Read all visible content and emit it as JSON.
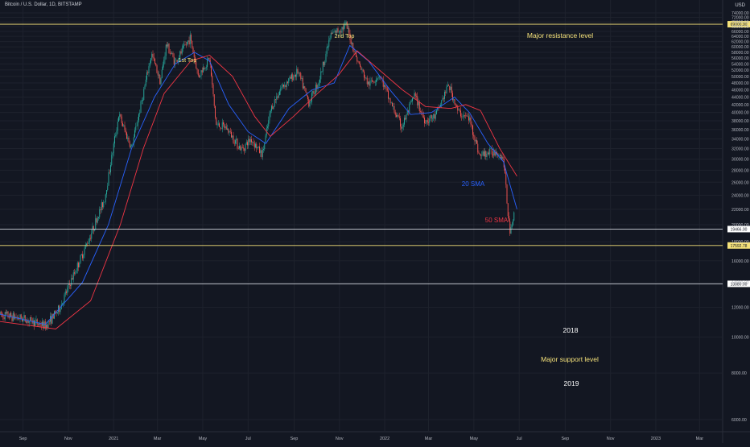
{
  "header": {
    "title": "Bitcoin / U.S. Dollar, 1D, BITSTAMP",
    "currency": "USD"
  },
  "colors": {
    "background": "#131722",
    "grid": "#1e222d",
    "up": "#26a69a",
    "down": "#ef5350",
    "sma20": "#2962ff",
    "sma50": "#f23645",
    "level_line": "#f5e27a",
    "level_line_white": "#d1d4dc",
    "axis_text": "#b2b5be",
    "annotation_yellow": "#f5e27a",
    "annotation_white": "#ffffff"
  },
  "chart_data": {
    "type": "line",
    "title": "Bitcoin / U.S. Dollar, 1D, BITSTAMP",
    "xlabel": "",
    "ylabel": "USD",
    "ylim": [
      6000,
      74000
    ],
    "x_ticks": [
      "Sep",
      "Nov",
      "2021",
      "Mar",
      "May",
      "Jul",
      "Sep",
      "Nov",
      "2022",
      "Mar",
      "May",
      "Jul",
      "Sep",
      "Nov",
      "2023",
      "Mar"
    ],
    "y_ticks": [
      6000,
      8000,
      10000,
      12000,
      14000,
      16000,
      18000,
      20000,
      22000,
      24000,
      26000,
      28000,
      30000,
      32000,
      34000,
      36000,
      38000,
      40000,
      42000,
      44000,
      46000,
      48000,
      50000,
      52000,
      54000,
      56000,
      58000,
      60000,
      62000,
      64000,
      66000,
      68000,
      70000,
      72000,
      74000
    ],
    "y_tick_labels": [
      "6000.00",
      "8000.00",
      "10000.00",
      "12000.00",
      "14000.00",
      "16000.00",
      "18000.00",
      "20000.00",
      "22000.00",
      "24000.00",
      "26000.00",
      "28000.00",
      "30000.00",
      "32000.00",
      "34000.00",
      "36000.00",
      "38000.00",
      "40000.00",
      "42000.00",
      "44000.00",
      "46000.00",
      "48000.00",
      "50000.00",
      "52000.00",
      "54000.00",
      "56000.00",
      "58000.00",
      "60000.00",
      "62000.00",
      "64000.00",
      "66000.00",
      "68000.00",
      "70000.00",
      "72000.00",
      "74000.00"
    ],
    "series": [
      {
        "name": "Price",
        "x": [
          "2020-08-01",
          "2020-09-01",
          "2020-10-01",
          "2020-10-20",
          "2020-11-15",
          "2020-12-01",
          "2020-12-20",
          "2021-01-08",
          "2021-01-25",
          "2021-02-10",
          "2021-02-21",
          "2021-03-05",
          "2021-03-13",
          "2021-03-25",
          "2021-04-14",
          "2021-04-25",
          "2021-05-10",
          "2021-05-19",
          "2021-06-01",
          "2021-06-22",
          "2021-07-05",
          "2021-07-20",
          "2021-08-01",
          "2021-08-14",
          "2021-09-06",
          "2021-09-21",
          "2021-10-05",
          "2021-10-20",
          "2021-11-10",
          "2021-11-26",
          "2021-12-10",
          "2021-12-25",
          "2022-01-10",
          "2022-01-24",
          "2022-02-10",
          "2022-02-24",
          "2022-03-10",
          "2022-03-28",
          "2022-04-10",
          "2022-04-25",
          "2022-05-09",
          "2022-05-15",
          "2022-06-01",
          "2022-06-10",
          "2022-06-18",
          "2022-06-25"
        ],
        "values": [
          11500,
          11200,
          10700,
          11900,
          15800,
          18800,
          23500,
          39500,
          32000,
          45000,
          57500,
          48500,
          61000,
          54500,
          63500,
          50000,
          56000,
          37000,
          36500,
          31800,
          34000,
          30800,
          41000,
          46500,
          51500,
          42500,
          49000,
          64500,
          68500,
          54500,
          47500,
          50500,
          42000,
          36500,
          44500,
          38000,
          39000,
          47500,
          40000,
          38500,
          30500,
          31000,
          31500,
          30000,
          19200,
          21500
        ]
      },
      {
        "name": "20 SMA",
        "x": [
          "2020-08-01",
          "2020-10-01",
          "2020-11-20",
          "2020-12-25",
          "2021-01-25",
          "2021-02-25",
          "2021-03-25",
          "2021-04-20",
          "2021-05-10",
          "2021-06-05",
          "2021-07-01",
          "2021-07-25",
          "2021-08-25",
          "2021-09-25",
          "2021-10-25",
          "2021-11-15",
          "2021-12-10",
          "2022-01-10",
          "2022-02-05",
          "2022-03-05",
          "2022-04-05",
          "2022-04-25",
          "2022-05-20",
          "2022-06-10",
          "2022-06-28"
        ],
        "values": [
          11500,
          10800,
          14000,
          20000,
          32000,
          44000,
          54000,
          58000,
          55000,
          42000,
          35500,
          33000,
          41000,
          46000,
          48000,
          60500,
          55000,
          45500,
          39500,
          40000,
          44000,
          40000,
          33000,
          29500,
          22000
        ]
      },
      {
        "name": "50 SMA",
        "x": [
          "2020-08-01",
          "2020-10-15",
          "2020-12-01",
          "2021-01-10",
          "2021-02-10",
          "2021-03-10",
          "2021-04-15",
          "2021-05-10",
          "2021-06-10",
          "2021-07-10",
          "2021-07-31",
          "2021-08-31",
          "2021-09-30",
          "2021-10-31",
          "2021-11-25",
          "2021-12-20",
          "2022-01-25",
          "2022-02-25",
          "2022-03-31",
          "2022-04-20",
          "2022-05-10",
          "2022-06-05",
          "2022-06-28"
        ],
        "values": [
          11000,
          10500,
          12500,
          20000,
          32000,
          45000,
          55000,
          57000,
          50000,
          39000,
          34500,
          39000,
          44500,
          50500,
          58500,
          53000,
          46000,
          41500,
          41000,
          42000,
          40500,
          32000,
          27000
        ]
      }
    ],
    "horizontal_levels": [
      69000.0,
      19466.0,
      17592.78,
      13880.0
    ],
    "horizontal_level_labels": [
      "69000.00",
      "19466.00",
      "17592.78",
      "13880.00"
    ],
    "annotations": [
      {
        "text": "1st Top"
      },
      {
        "text": "2nd Top"
      },
      {
        "text": "Major resistance level"
      },
      {
        "text": "20 SMA"
      },
      {
        "text": "50 SMA"
      },
      {
        "text": "2018"
      },
      {
        "text": "Major support level"
      },
      {
        "text": "2019"
      }
    ],
    "grid": true,
    "legend": "none"
  }
}
